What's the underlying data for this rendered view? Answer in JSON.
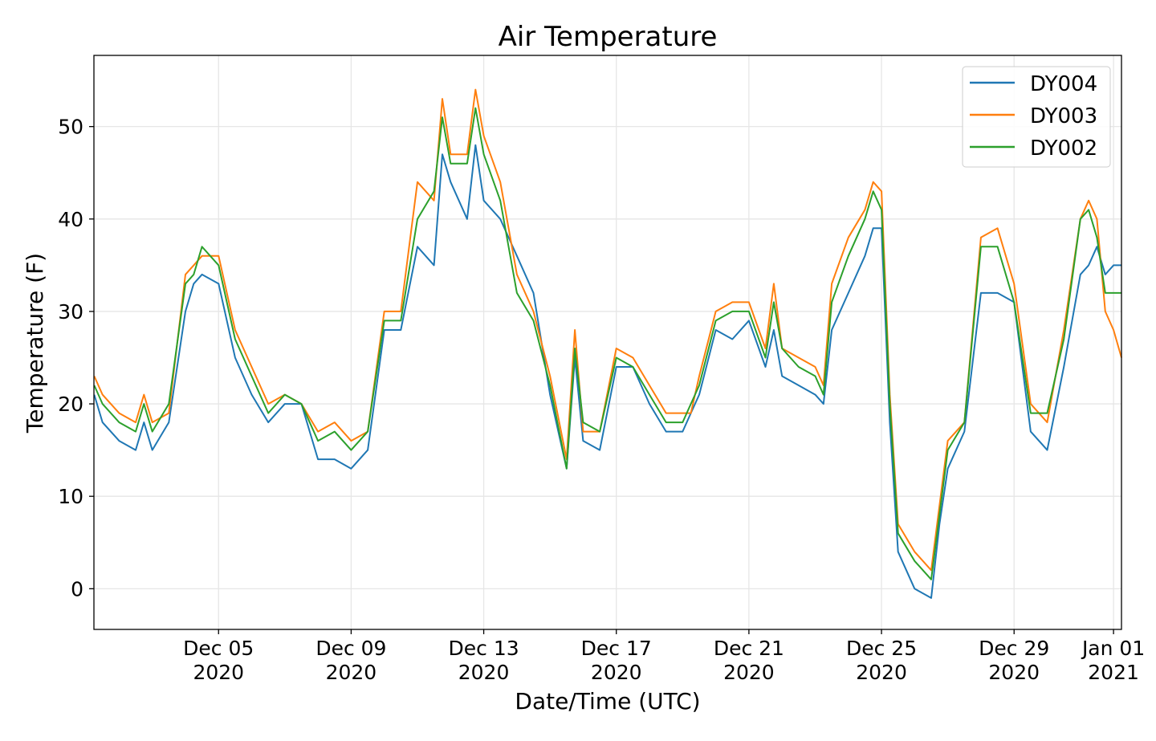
{
  "chart_data": {
    "type": "line",
    "title": "Air Temperature",
    "xlabel": "Date/Time (UTC)",
    "ylabel": "Temperature (F)",
    "x_unit": "days since 2020-12-01 00:00 UTC (day-of-December, Jan 01 = 32)",
    "xlim": [
      1.24,
      32.24
    ],
    "ylim": [
      -4.4,
      57.7
    ],
    "grid": true,
    "legend_position": "top-right",
    "y_ticks": [
      0,
      10,
      20,
      30,
      40,
      50
    ],
    "x_ticks": [
      {
        "value": 5,
        "label": [
          "Dec 05",
          "2020"
        ]
      },
      {
        "value": 9,
        "label": [
          "Dec 09",
          "2020"
        ]
      },
      {
        "value": 13,
        "label": [
          "Dec 13",
          "2020"
        ]
      },
      {
        "value": 17,
        "label": [
          "Dec 17",
          "2020"
        ]
      },
      {
        "value": 21,
        "label": [
          "Dec 21",
          "2020"
        ]
      },
      {
        "value": 25,
        "label": [
          "Dec 25",
          "2020"
        ]
      },
      {
        "value": 29,
        "label": [
          "Dec 29",
          "2020"
        ]
      },
      {
        "value": 32,
        "label": [
          "Jan 01",
          "2021"
        ]
      }
    ],
    "x": [
      1.25,
      1.5,
      2,
      2.5,
      2.75,
      3,
      3.5,
      4,
      4.25,
      4.5,
      5,
      5.5,
      6,
      6.5,
      7,
      7.5,
      8,
      8.5,
      9,
      9.5,
      10,
      10.5,
      11,
      11.5,
      11.75,
      12,
      12.5,
      12.75,
      13,
      13.5,
      14,
      14.5,
      15,
      15.5,
      15.75,
      16,
      16.5,
      17,
      17.5,
      18,
      18.5,
      19,
      19.25,
      19.5,
      20,
      20.5,
      21,
      21.5,
      21.75,
      22,
      22.5,
      23,
      23.25,
      23.5,
      24,
      24.5,
      24.75,
      25,
      25.25,
      25.5,
      26,
      26.5,
      26.75,
      27,
      27.5,
      28,
      28.5,
      29,
      29.5,
      30,
      30.5,
      31,
      31.25,
      31.5,
      31.75,
      32,
      32.24
    ],
    "series": [
      {
        "name": "DY004",
        "color": "#1f77b4",
        "values": [
          21,
          18,
          16,
          15,
          18,
          15,
          18,
          30,
          33,
          34,
          33,
          25,
          21,
          18,
          20,
          20,
          14,
          14,
          13,
          15,
          28,
          28,
          37,
          35,
          47,
          44,
          40,
          48,
          42,
          40,
          36,
          32,
          21,
          13,
          25,
          16,
          15,
          24,
          24,
          20,
          17,
          17,
          19,
          21,
          28,
          27,
          29,
          24,
          28,
          23,
          22,
          21,
          20,
          28,
          32,
          36,
          39,
          39,
          18,
          4,
          0,
          -1,
          7,
          13,
          17,
          32,
          32,
          31,
          17,
          15,
          24,
          34,
          35,
          37,
          34,
          35,
          35
        ]
      },
      {
        "name": "DY003",
        "color": "#ff7f0e",
        "values": [
          23,
          21,
          19,
          18,
          21,
          18,
          19,
          34,
          35,
          36,
          36,
          28,
          24,
          20,
          21,
          20,
          17,
          18,
          16,
          17,
          30,
          30,
          44,
          42,
          53,
          47,
          47,
          54,
          49,
          44,
          34,
          30,
          23,
          14,
          28,
          17,
          17,
          26,
          25,
          22,
          19,
          19,
          19,
          23,
          30,
          31,
          31,
          26,
          33,
          26,
          25,
          24,
          22,
          33,
          38,
          41,
          44,
          43,
          21,
          7,
          4,
          2,
          9,
          16,
          18,
          38,
          39,
          33,
          20,
          18,
          28,
          40,
          42,
          40,
          30,
          28,
          25
        ]
      },
      {
        "name": "DY002",
        "color": "#2ca02c",
        "values": [
          22,
          20,
          18,
          17,
          20,
          17,
          20,
          33,
          34,
          37,
          35,
          27,
          23,
          19,
          21,
          20,
          16,
          17,
          15,
          17,
          29,
          29,
          40,
          43,
          51,
          46,
          46,
          52,
          47,
          42,
          32,
          29,
          22,
          13,
          26,
          18,
          17,
          25,
          24,
          21,
          18,
          18,
          20,
          22,
          29,
          30,
          30,
          25,
          31,
          26,
          24,
          23,
          21,
          31,
          36,
          40,
          43,
          41,
          20,
          6,
          3,
          1,
          8,
          15,
          18,
          37,
          37,
          31,
          19,
          19,
          27,
          40,
          41,
          38,
          32,
          32,
          32
        ]
      }
    ]
  }
}
